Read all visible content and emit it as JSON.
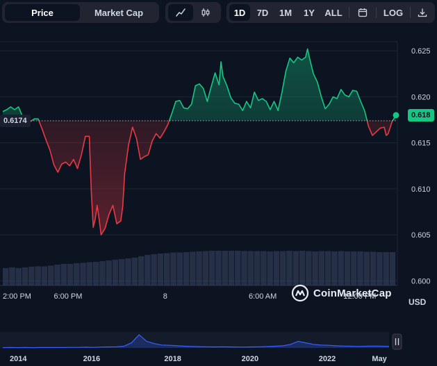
{
  "toolbar": {
    "data_type_tabs": [
      {
        "label": "Price",
        "active": true
      },
      {
        "label": "Market Cap",
        "active": false
      }
    ],
    "chart_type_icons": [
      {
        "name": "line-chart-icon",
        "active": true
      },
      {
        "name": "candlestick-chart-icon",
        "active": false
      }
    ],
    "range_tabs": [
      {
        "label": "1D",
        "active": true
      },
      {
        "label": "7D",
        "active": false
      },
      {
        "label": "1M",
        "active": false
      },
      {
        "label": "1Y",
        "active": false
      },
      {
        "label": "ALL",
        "active": false
      }
    ],
    "calendar_icon": "calendar-icon",
    "log_label": "LOG",
    "download_icon": "download-icon"
  },
  "colors": {
    "background": "#0d1421",
    "up": "#16c784",
    "down": "#ea3943",
    "volume": "#3a4566",
    "grid": "#1e2535",
    "axis_text": "#cfd6e4"
  },
  "brand": {
    "name": "CoinMarketCap",
    "icon": "coinmarketcap-logo-icon"
  },
  "current_price_label": "0.618",
  "reference_price_label": "0.6174",
  "currency_label": "USD",
  "chart_data": {
    "type": "line",
    "title": "",
    "reference_price": 0.6174,
    "current_price": 0.618,
    "ylim": [
      0.5995,
      0.6275
    ],
    "y_ticks": [
      {
        "value": 0.625,
        "label": "0.625"
      },
      {
        "value": 0.62,
        "label": "0.620"
      },
      {
        "value": 0.615,
        "label": "0.615"
      },
      {
        "value": 0.61,
        "label": "0.610"
      },
      {
        "value": 0.605,
        "label": "0.605"
      },
      {
        "value": 0.6,
        "label": "0.600"
      }
    ],
    "x_ticks": [
      {
        "t": 0.0,
        "label": "2:00 PM"
      },
      {
        "t": 0.166,
        "label": "6:00 PM"
      },
      {
        "t": 0.413,
        "label": "8"
      },
      {
        "t": 0.661,
        "label": "6:00 AM"
      },
      {
        "t": 0.908,
        "label": "12:00 PM"
      }
    ],
    "series": [
      {
        "values": [
          [
            0.0,
            0.6184
          ],
          [
            0.01,
            0.6186
          ],
          [
            0.02,
            0.6189
          ],
          [
            0.03,
            0.6186
          ],
          [
            0.04,
            0.6189
          ],
          [
            0.05,
            0.6179
          ],
          [
            0.06,
            0.6175
          ],
          [
            0.07,
            0.6173
          ],
          [
            0.08,
            0.6176
          ],
          [
            0.09,
            0.6176
          ],
          [
            0.1,
            0.6165
          ],
          [
            0.11,
            0.6153
          ],
          [
            0.12,
            0.6142
          ],
          [
            0.13,
            0.6126
          ],
          [
            0.14,
            0.6118
          ],
          [
            0.15,
            0.6127
          ],
          [
            0.16,
            0.6129
          ],
          [
            0.17,
            0.6125
          ],
          [
            0.18,
            0.6132
          ],
          [
            0.19,
            0.6122
          ],
          [
            0.2,
            0.6137
          ],
          [
            0.21,
            0.6157
          ],
          [
            0.22,
            0.6157
          ],
          [
            0.225,
            0.6097
          ],
          [
            0.23,
            0.6058
          ],
          [
            0.235,
            0.6067
          ],
          [
            0.24,
            0.6082
          ],
          [
            0.245,
            0.6067
          ],
          [
            0.25,
            0.605
          ],
          [
            0.26,
            0.6057
          ],
          [
            0.27,
            0.6072
          ],
          [
            0.28,
            0.6082
          ],
          [
            0.29,
            0.6062
          ],
          [
            0.3,
            0.6065
          ],
          [
            0.305,
            0.608
          ],
          [
            0.31,
            0.6117
          ],
          [
            0.32,
            0.6148
          ],
          [
            0.33,
            0.6167
          ],
          [
            0.34,
            0.6155
          ],
          [
            0.35,
            0.6132
          ],
          [
            0.36,
            0.6135
          ],
          [
            0.37,
            0.6137
          ],
          [
            0.38,
            0.6152
          ],
          [
            0.39,
            0.616
          ],
          [
            0.4,
            0.6155
          ],
          [
            0.41,
            0.6162
          ],
          [
            0.42,
            0.617
          ],
          [
            0.43,
            0.6182
          ],
          [
            0.44,
            0.6195
          ],
          [
            0.45,
            0.6196
          ],
          [
            0.46,
            0.6188
          ],
          [
            0.47,
            0.6187
          ],
          [
            0.48,
            0.6192
          ],
          [
            0.49,
            0.6212
          ],
          [
            0.5,
            0.6214
          ],
          [
            0.51,
            0.6209
          ],
          [
            0.52,
            0.6195
          ],
          [
            0.53,
            0.6211
          ],
          [
            0.54,
            0.6226
          ],
          [
            0.55,
            0.6213
          ],
          [
            0.555,
            0.6238
          ],
          [
            0.56,
            0.6222
          ],
          [
            0.57,
            0.6212
          ],
          [
            0.58,
            0.6199
          ],
          [
            0.59,
            0.6193
          ],
          [
            0.6,
            0.6192
          ],
          [
            0.61,
            0.6185
          ],
          [
            0.62,
            0.6195
          ],
          [
            0.63,
            0.6188
          ],
          [
            0.64,
            0.6205
          ],
          [
            0.65,
            0.6196
          ],
          [
            0.66,
            0.6198
          ],
          [
            0.67,
            0.6195
          ],
          [
            0.68,
            0.6186
          ],
          [
            0.69,
            0.6195
          ],
          [
            0.7,
            0.6185
          ],
          [
            0.71,
            0.6205
          ],
          [
            0.72,
            0.6228
          ],
          [
            0.73,
            0.6242
          ],
          [
            0.74,
            0.6237
          ],
          [
            0.75,
            0.6243
          ],
          [
            0.76,
            0.624
          ],
          [
            0.77,
            0.6243
          ],
          [
            0.775,
            0.6252
          ],
          [
            0.78,
            0.6242
          ],
          [
            0.79,
            0.6225
          ],
          [
            0.8,
            0.6216
          ],
          [
            0.81,
            0.62
          ],
          [
            0.82,
            0.6187
          ],
          [
            0.83,
            0.6192
          ],
          [
            0.84,
            0.62
          ],
          [
            0.85,
            0.6198
          ],
          [
            0.86,
            0.6208
          ],
          [
            0.87,
            0.6202
          ],
          [
            0.88,
            0.62
          ],
          [
            0.89,
            0.6207
          ],
          [
            0.9,
            0.6206
          ],
          [
            0.91,
            0.6195
          ],
          [
            0.92,
            0.6185
          ],
          [
            0.93,
            0.6168
          ],
          [
            0.94,
            0.6158
          ],
          [
            0.95,
            0.6162
          ],
          [
            0.96,
            0.6166
          ],
          [
            0.97,
            0.6167
          ],
          [
            0.975,
            0.6158
          ],
          [
            0.98,
            0.616
          ],
          [
            0.99,
            0.6173
          ],
          [
            1.0,
            0.618
          ]
        ]
      }
    ]
  },
  "volume_data": {
    "type": "bar",
    "levels": [
      0.5,
      0.52,
      0.5,
      0.52,
      0.54,
      0.55,
      0.55,
      0.57,
      0.6,
      0.62,
      0.62,
      0.64,
      0.65,
      0.67,
      0.68,
      0.7,
      0.72,
      0.74,
      0.76,
      0.78,
      0.8,
      0.84,
      0.88,
      0.9,
      0.92,
      0.93,
      0.95,
      0.95,
      0.96,
      0.97,
      0.98,
      0.99,
      1.0,
      1.0,
      1.0,
      1.0,
      1.0,
      0.99,
      0.99,
      0.99,
      0.99,
      0.98,
      0.99,
      0.99,
      1.0,
      0.99,
      1.0,
      0.99,
      0.98,
      0.99,
      0.99,
      0.98,
      0.99,
      0.98,
      0.98,
      0.98,
      0.97,
      0.97,
      0.96,
      0.96,
      0.96
    ]
  },
  "navigator": {
    "x_ticks": [
      {
        "t": 0.04,
        "label": "2014"
      },
      {
        "t": 0.23,
        "label": "2016"
      },
      {
        "t": 0.44,
        "label": "2018"
      },
      {
        "t": 0.64,
        "label": "2020"
      },
      {
        "t": 0.84,
        "label": "2022"
      },
      {
        "t": 0.975,
        "label": "May"
      }
    ],
    "overview_levels": [
      0.02,
      0.03,
      0.02,
      0.03,
      0.02,
      0.03,
      0.03,
      0.03,
      0.03,
      0.04,
      0.04,
      0.05,
      0.04,
      0.06,
      0.07,
      0.08,
      0.12,
      0.35,
      0.9,
      0.45,
      0.3,
      0.2,
      0.18,
      0.15,
      0.12,
      0.1,
      0.09,
      0.08,
      0.07,
      0.08,
      0.07,
      0.06,
      0.06,
      0.07,
      0.08,
      0.1,
      0.12,
      0.15,
      0.25,
      0.45,
      0.35,
      0.25,
      0.2,
      0.18,
      0.15,
      0.13,
      0.12,
      0.11,
      0.12,
      0.13,
      0.12,
      0.11
    ],
    "handle_icon": "pause-handle-icon"
  }
}
